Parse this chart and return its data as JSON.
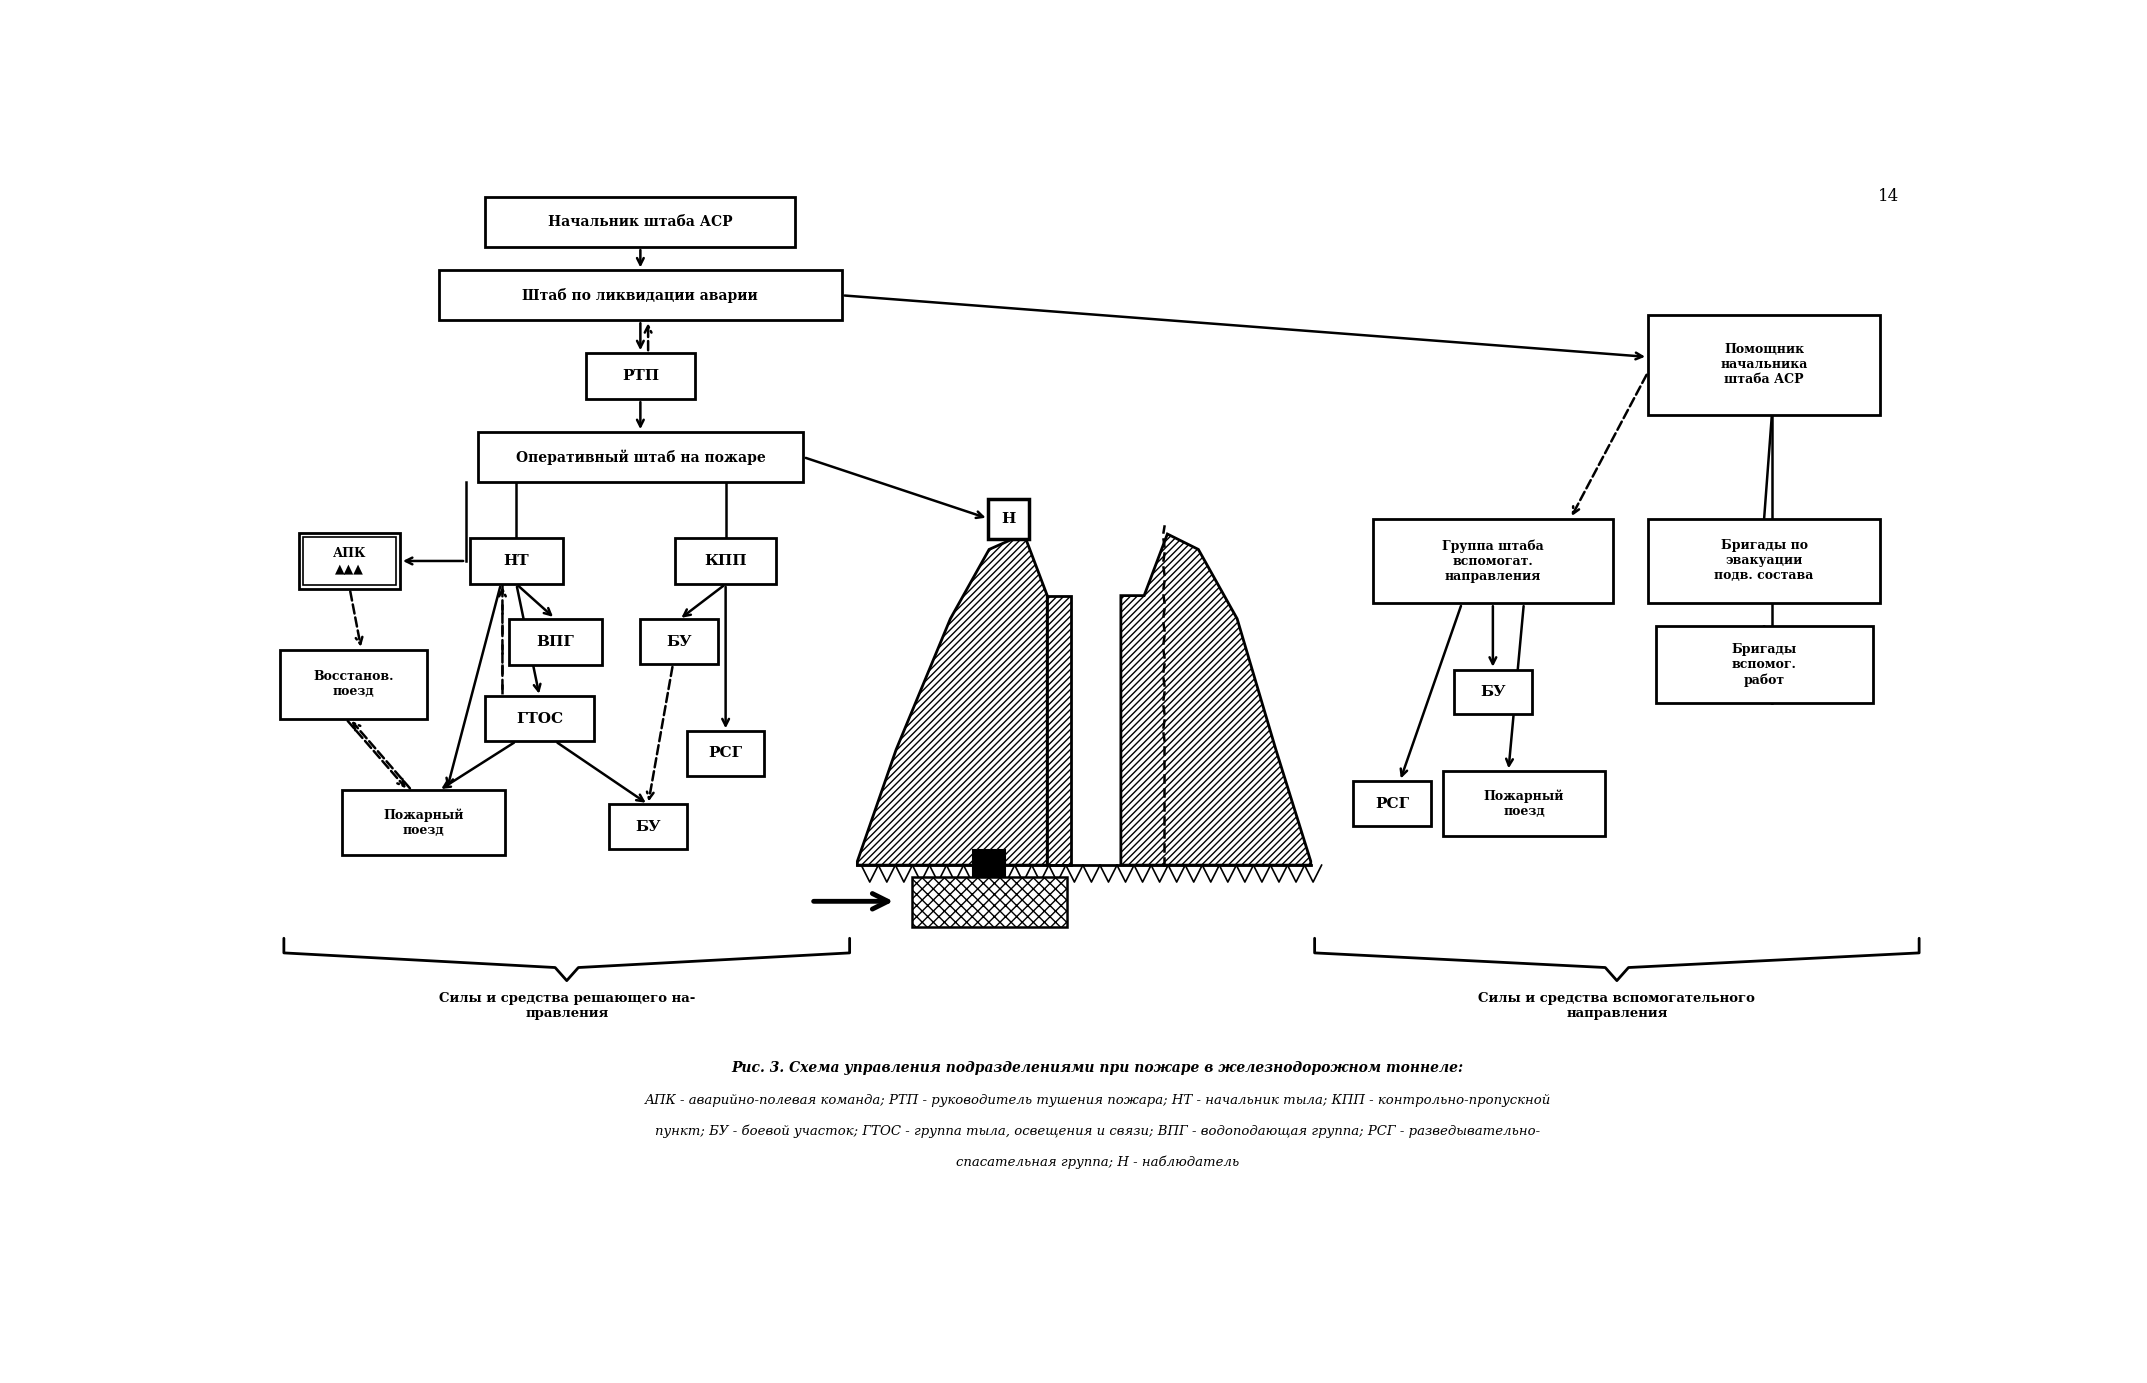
{
  "title": "Рис. 3. Схема управления подразделениями при пожаре в железнодорожном тоннеле:",
  "subtitle1": "АПК - аварийно-полевая команда; РТП - руководитель тушения пожара; НТ - начальник тыла; КПП - контрольно-пропускной",
  "subtitle2": "пункт; БУ - боевой участок; ГТОС - группа тыла, освещения и связи; ВПГ - водоподающая группа; РСГ - разведывательно-",
  "subtitle3": "спасательная группа; Н - наблюдатель",
  "label_left": "Силы и средства решающего на-\nправления",
  "label_right": "Силы и средства вспомогательного\nнаправления",
  "page_number": "14",
  "bg_color": "#ffffff"
}
